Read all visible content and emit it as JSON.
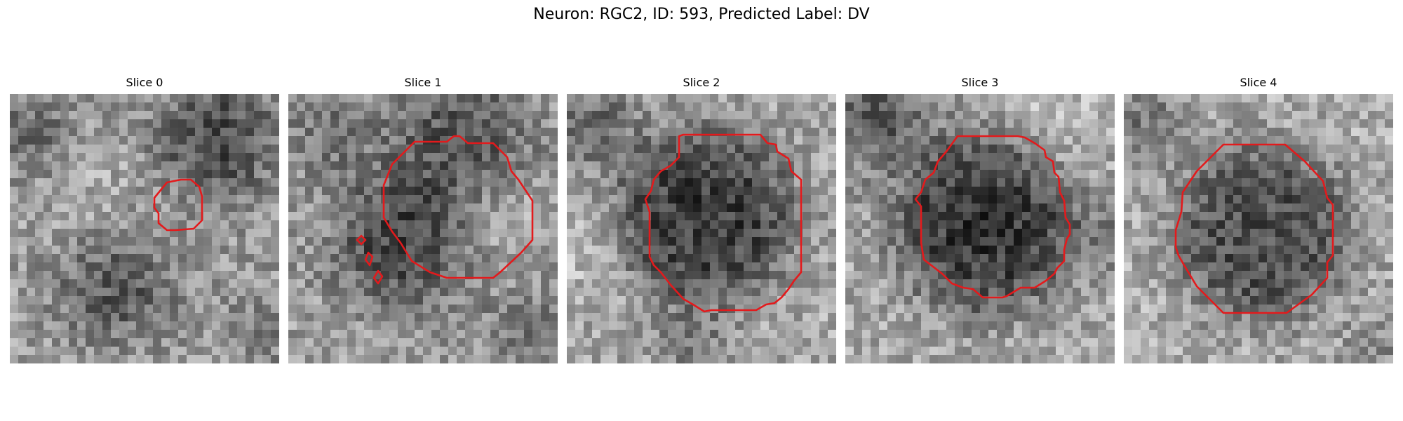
{
  "figure": {
    "title": "Neuron: RGC2, ID: 593, Predicted Label: DV"
  },
  "colors": {
    "contour": "#e31a1c",
    "background": "#ffffff"
  },
  "panels": [
    {
      "title": "Slice 0"
    },
    {
      "title": "Slice 1"
    },
    {
      "title": "Slice 2"
    },
    {
      "title": "Slice 3"
    },
    {
      "title": "Slice 4"
    }
  ]
}
